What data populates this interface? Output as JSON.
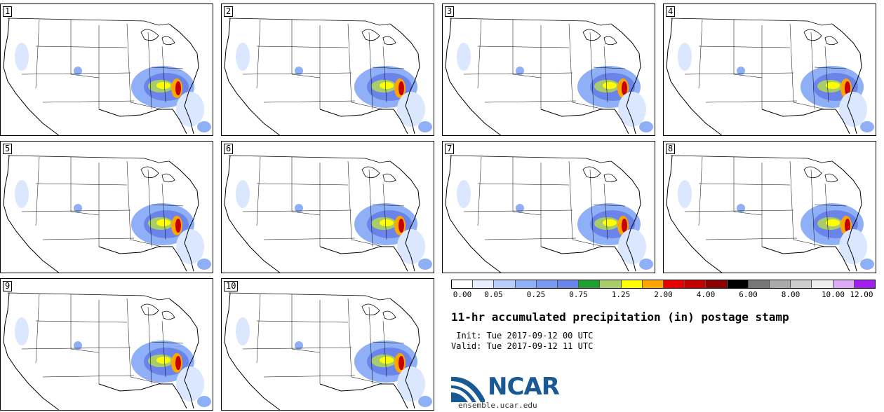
{
  "product": {
    "title": "11-hr accumulated precipitation (in) postage stamp",
    "init_line": " Init: Tue 2017-09-12 00 UTC",
    "valid_line": "Valid: Tue 2017-09-12 11 UTC"
  },
  "members": [
    "1",
    "2",
    "3",
    "4",
    "5",
    "6",
    "7",
    "8",
    "9",
    "10"
  ],
  "colorbar": {
    "bins": [
      "#ffffff",
      "#e6eeff",
      "#b8cdfc",
      "#8fb0f7",
      "#7a9af2",
      "#6b84ea",
      "#1e9f2f",
      "#a9cc6b",
      "#ffff00",
      "#ffa500",
      "#e60000",
      "#c40000",
      "#8b0000",
      "#000000",
      "#777777",
      "#aaaaaa",
      "#cccccc",
      "#eeeeee",
      "#ddaaf5",
      "#a020f0"
    ],
    "tick_labels": [
      "0.00",
      "0.05",
      "0.25",
      "0.75",
      "1.25",
      "2.00",
      "4.00",
      "6.00",
      "8.00",
      "10.00",
      "12.00"
    ]
  },
  "branding": {
    "logo_text": "NCAR",
    "site": "ensemble.ucar.edu",
    "logo_color": "#1a5a94"
  }
}
